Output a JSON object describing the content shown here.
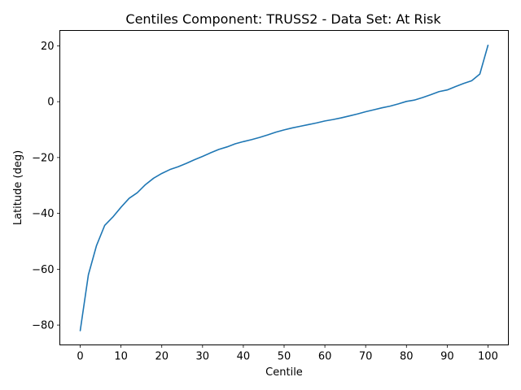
{
  "chart_data": {
    "type": "line",
    "title": "Centiles Component: TRUSS2 - Data Set: At Risk",
    "xlabel": "Centile",
    "ylabel": "Latitude (deg)",
    "xlim": [
      -5,
      105
    ],
    "ylim": [
      -87.1,
      25.5
    ],
    "xticks": [
      0,
      10,
      20,
      30,
      40,
      50,
      60,
      70,
      80,
      90,
      100
    ],
    "yticks": [
      -80,
      -60,
      -40,
      -20,
      0,
      20
    ],
    "grid": false,
    "line_color": "#1f77b4",
    "series": [
      {
        "x": [
          0,
          2,
          4,
          6,
          8,
          10,
          12,
          14,
          16,
          18,
          20,
          22,
          24,
          26,
          28,
          30,
          32,
          34,
          36,
          38,
          40,
          42,
          44,
          46,
          48,
          50,
          52,
          54,
          56,
          58,
          60,
          62,
          64,
          66,
          68,
          70,
          72,
          74,
          76,
          78,
          80,
          82,
          84,
          86,
          88,
          90,
          92,
          94,
          96,
          98,
          100
        ],
        "values": [
          -82,
          -62,
          -51.5,
          -44.3,
          -41.3,
          -37.8,
          -34.6,
          -32.6,
          -29.7,
          -27.4,
          -25.7,
          -24.3,
          -23.3,
          -22.1,
          -20.8,
          -19.6,
          -18.3,
          -17.1,
          -16.2,
          -15.1,
          -14.3,
          -13.6,
          -12.8,
          -11.9,
          -10.9,
          -10.1,
          -9.4,
          -8.8,
          -8.2,
          -7.6,
          -6.9,
          -6.4,
          -5.8,
          -5.1,
          -4.4,
          -3.6,
          -2.9,
          -2.2,
          -1.6,
          -0.8,
          0.1,
          0.6,
          1.5,
          2.5,
          3.6,
          4.2,
          5.4,
          6.5,
          7.5,
          9.9,
          20.2
        ]
      }
    ]
  }
}
